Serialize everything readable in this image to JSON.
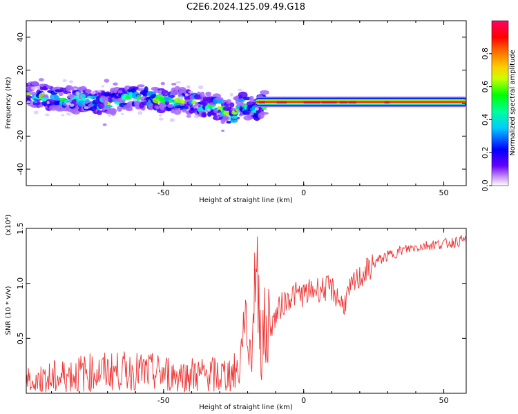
{
  "title": "C2E6.2024.125.09.49.G18",
  "colors": {
    "snr_line": "#ee3333",
    "axes": "#000000",
    "background": "#ffffff"
  },
  "colorbar": {
    "label": "Normalized spectral amplitude",
    "ticks": [
      {
        "value": 0.0,
        "label": "0.0"
      },
      {
        "value": 0.2,
        "label": "0.2"
      },
      {
        "value": 0.4,
        "label": "0.4"
      },
      {
        "value": 0.6,
        "label": "0.6"
      },
      {
        "value": 0.8,
        "label": "0.8"
      }
    ],
    "range": [
      0,
      1
    ],
    "colormap": "rainbow (violet-blue-cyan-green-yellow-orange-red-magenta)"
  },
  "chart_data": [
    {
      "type": "heatmap",
      "title": "C2E6.2024.125.09.49.G18",
      "xlabel": "Height of straight line (km)",
      "ylabel": "Frequency (Hz)",
      "xlim": [
        -99,
        58
      ],
      "ylim": [
        -50,
        50
      ],
      "xticks": [
        {
          "value": -50,
          "label": "-50"
        },
        {
          "value": 0,
          "label": "0"
        },
        {
          "value": 50,
          "label": "50"
        }
      ],
      "yticks": [
        {
          "value": -40,
          "label": "-40"
        },
        {
          "value": -20,
          "label": "-20"
        },
        {
          "value": 0,
          "label": "0"
        },
        {
          "value": 20,
          "label": "20"
        },
        {
          "value": 40,
          "label": "40"
        }
      ],
      "ridge": [
        {
          "x": -99,
          "f": 6
        },
        {
          "x": -90,
          "f": 3
        },
        {
          "x": -80,
          "f": 2
        },
        {
          "x": -70,
          "f": 0
        },
        {
          "x": -60,
          "f": 4
        },
        {
          "x": -50,
          "f": 2
        },
        {
          "x": -40,
          "f": 1
        },
        {
          "x": -30,
          "f": -3
        },
        {
          "x": -25,
          "f": -8
        },
        {
          "x": -22,
          "f": 0
        },
        {
          "x": -17,
          "f": -5
        },
        {
          "x": -15,
          "f": 0
        },
        {
          "x": 0,
          "f": 0
        },
        {
          "x": 10,
          "f": 1
        },
        {
          "x": 20,
          "f": 1
        },
        {
          "x": 30,
          "f": 1
        },
        {
          "x": 40,
          "f": 1
        },
        {
          "x": 50,
          "f": 1
        },
        {
          "x": 58,
          "f": 1
        }
      ],
      "grid": false
    },
    {
      "type": "line",
      "xlabel": "Height of straight line (km)",
      "ylabel": "SNR (10 * v/v)",
      "y_multiplier": "(x10⁴)",
      "xlim": [
        -99,
        58
      ],
      "ylim": [
        0,
        1.5
      ],
      "xticks": [
        {
          "value": -50,
          "label": "-50"
        },
        {
          "value": 0,
          "label": "0"
        },
        {
          "value": 50,
          "label": "50"
        }
      ],
      "yticks": [
        {
          "value": 0.5,
          "label": "0.5"
        },
        {
          "value": 1.0,
          "label": "1.0"
        },
        {
          "value": 1.5,
          "label": "1.5"
        }
      ],
      "series": [
        {
          "color": "#ee3333",
          "x": [
            -99,
            -90,
            -80,
            -70,
            -60,
            -50,
            -40,
            -30,
            -23,
            -21,
            -19,
            -17,
            -15,
            -12,
            -8,
            -4,
            0,
            5,
            10,
            14,
            18,
            22,
            26,
            30,
            35,
            40,
            45,
            50,
            55,
            58
          ],
          "y": [
            0.08,
            0.12,
            0.18,
            0.2,
            0.2,
            0.18,
            0.16,
            0.16,
            0.2,
            0.75,
            0.3,
            1.2,
            0.5,
            0.6,
            0.8,
            0.9,
            0.9,
            0.95,
            0.95,
            0.8,
            1.0,
            1.1,
            1.2,
            1.25,
            1.3,
            1.33,
            1.35,
            1.36,
            1.38,
            1.4
          ]
        }
      ],
      "grid": false
    }
  ]
}
